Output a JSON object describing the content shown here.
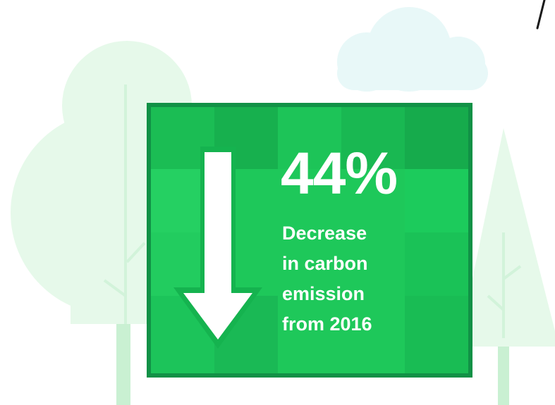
{
  "colors": {
    "background": "#ffffff",
    "panel_green": "#1ec85a",
    "panel_border": "#119146",
    "tree_light_green": "#e6f9ea",
    "trunk_green": "#c9f0d2",
    "cloud": "#e8f8f8",
    "text": "#ffffff"
  },
  "stat": {
    "value": "44%",
    "caption_lines": [
      "Decrease",
      "in carbon",
      "emission",
      "from 2016"
    ]
  },
  "icons": {
    "arrow": "arrow-down-icon",
    "cloud": "cloud-icon",
    "round_tree": "round-tree-icon",
    "pine_tree": "pine-tree-icon"
  }
}
